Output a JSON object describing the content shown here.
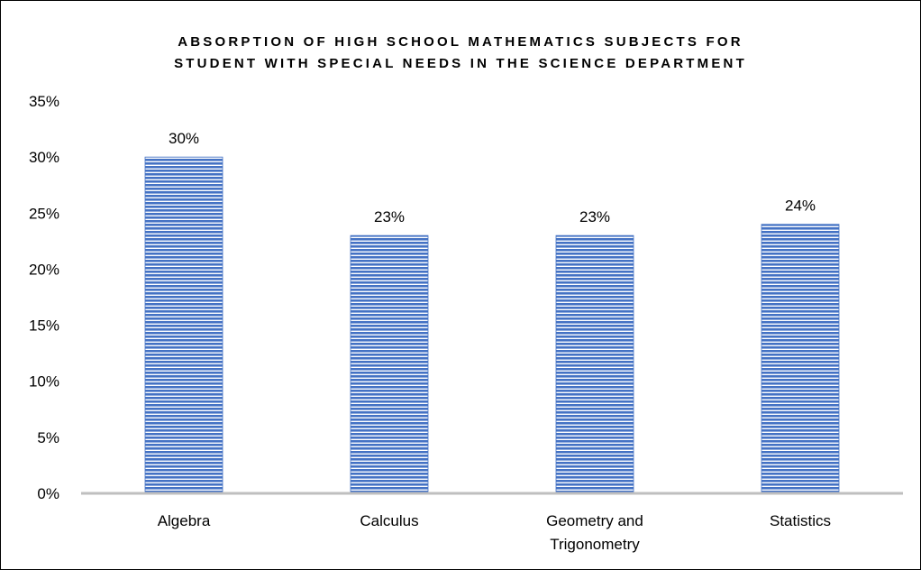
{
  "chart_data": {
    "type": "bar",
    "title_lines": [
      "ABSORPTION OF HIGH SCHOOL MATHEMATICS SUBJECTS FOR",
      "STUDENT WITH SPECIAL NEEDS IN THE SCIENCE DEPARTMENT"
    ],
    "categories": [
      [
        "Algebra"
      ],
      [
        "Calculus"
      ],
      [
        "Geometry and",
        "Trigonometry"
      ],
      [
        "Statistics"
      ]
    ],
    "values": [
      30,
      23,
      23,
      24
    ],
    "data_labels": [
      "30%",
      "23%",
      "23%",
      "24%"
    ],
    "ylim": [
      0,
      35
    ],
    "yticks": [
      0,
      5,
      10,
      15,
      20,
      25,
      30,
      35
    ],
    "ytick_labels": [
      "0%",
      "5%",
      "10%",
      "15%",
      "20%",
      "25%",
      "30%",
      "35%"
    ],
    "grid": false,
    "legend": "none",
    "bar_color": "#4472c4",
    "axis_color": "#bfbfbf"
  }
}
